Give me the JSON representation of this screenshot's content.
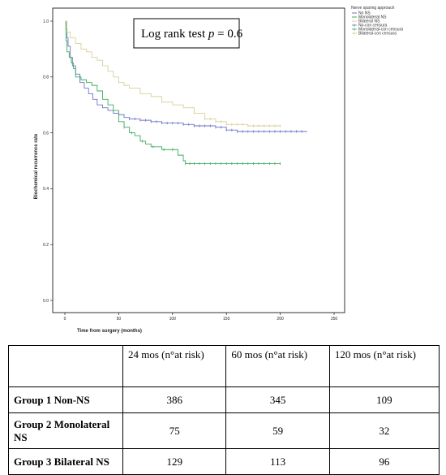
{
  "chart_data": {
    "type": "line",
    "title": "",
    "xlabel": "Time from surgery (months)",
    "ylabel": "Biochemical recurrence rate",
    "xlim": [
      0,
      250
    ],
    "ylim": [
      0.0,
      1.0
    ],
    "x_ticks": [
      0,
      50,
      100,
      150,
      200,
      250
    ],
    "y_ticks": [
      0.0,
      0.2,
      0.4,
      0.6,
      0.8,
      1.0
    ],
    "x_tick_labels": [
      "0",
      "50",
      "100",
      "150",
      "200",
      "250"
    ],
    "y_tick_labels": [
      "0.0",
      "0.2",
      "0.4",
      "0.6",
      "0.8",
      "1.0"
    ],
    "annotation": {
      "prefix": "Log rank test ",
      "italic": "p",
      "suffix": " = 0.6"
    },
    "legend_title": "Nerve sparing approach",
    "legend_placement": "top-right",
    "legend": [
      {
        "label": "No NS",
        "color": "#6a76c8",
        "kind": "line"
      },
      {
        "label": "Monolateral NS",
        "color": "#3cac5c",
        "kind": "line"
      },
      {
        "label": "Bilateral NS",
        "color": "#d9cf9a",
        "kind": "line"
      },
      {
        "label": "No-con censura",
        "color": "#6a76c8",
        "kind": "cross"
      },
      {
        "label": "Monolateral-con censura",
        "color": "#3cac5c",
        "kind": "cross"
      },
      {
        "label": "Bilateral-con censura",
        "color": "#d9cf9a",
        "kind": "cross"
      }
    ],
    "series": [
      {
        "name": "No NS",
        "color": "#6a76c8",
        "x": [
          0,
          1,
          2,
          3,
          5,
          7,
          10,
          14,
          18,
          22,
          26,
          30,
          35,
          40,
          45,
          50,
          55,
          60,
          70,
          80,
          90,
          100,
          110,
          120,
          130,
          140,
          150,
          160,
          170,
          180,
          190,
          200,
          210,
          220,
          225
        ],
        "y": [
          1.0,
          0.97,
          0.94,
          0.91,
          0.87,
          0.84,
          0.81,
          0.78,
          0.76,
          0.74,
          0.72,
          0.7,
          0.69,
          0.68,
          0.67,
          0.665,
          0.655,
          0.65,
          0.645,
          0.64,
          0.635,
          0.635,
          0.63,
          0.625,
          0.625,
          0.62,
          0.61,
          0.605,
          0.605,
          0.605,
          0.605,
          0.605,
          0.605,
          0.605,
          0.605
        ],
        "censor_x": [
          60,
          65,
          70,
          75,
          80,
          85,
          90,
          95,
          100,
          105,
          110,
          115,
          120,
          125,
          130,
          135,
          140,
          145,
          150,
          155,
          160,
          165,
          170,
          175,
          180,
          185,
          190,
          195,
          200,
          205,
          210,
          215,
          220
        ]
      },
      {
        "name": "Monolateral NS",
        "color": "#3cac5c",
        "x": [
          0,
          1,
          2,
          4,
          6,
          8,
          10,
          15,
          20,
          25,
          30,
          35,
          40,
          45,
          50,
          55,
          60,
          65,
          70,
          75,
          80,
          85,
          90,
          100,
          105,
          110,
          112,
          120,
          150,
          180,
          200
        ],
        "y": [
          1.0,
          0.93,
          0.89,
          0.87,
          0.85,
          0.83,
          0.8,
          0.79,
          0.78,
          0.77,
          0.75,
          0.72,
          0.7,
          0.68,
          0.64,
          0.62,
          0.6,
          0.59,
          0.57,
          0.56,
          0.55,
          0.55,
          0.54,
          0.54,
          0.52,
          0.5,
          0.49,
          0.49,
          0.49,
          0.49,
          0.49
        ],
        "censor_x": [
          55,
          62,
          72,
          82,
          92,
          100,
          112,
          116,
          120,
          125,
          130,
          135,
          140,
          145,
          150,
          155,
          160,
          165,
          170,
          175,
          180,
          185,
          190,
          195,
          200
        ]
      },
      {
        "name": "Bilateral NS",
        "color": "#d9cf9a",
        "x": [
          0,
          2,
          5,
          10,
          15,
          20,
          25,
          30,
          35,
          40,
          45,
          50,
          55,
          60,
          70,
          80,
          90,
          100,
          110,
          120,
          130,
          140,
          150,
          160,
          170,
          180,
          190,
          200
        ],
        "y": [
          1.0,
          0.96,
          0.94,
          0.92,
          0.9,
          0.89,
          0.87,
          0.86,
          0.84,
          0.82,
          0.8,
          0.78,
          0.77,
          0.76,
          0.74,
          0.73,
          0.71,
          0.7,
          0.69,
          0.67,
          0.65,
          0.64,
          0.63,
          0.63,
          0.625,
          0.625,
          0.625,
          0.625
        ],
        "censor_x": [
          130,
          135,
          140,
          145,
          150,
          155,
          160,
          165,
          170,
          175,
          180,
          185,
          190,
          195,
          200
        ]
      }
    ]
  },
  "table": {
    "headers": [
      "",
      "24 mos (n°at risk)",
      "60 mos (n°at risk)",
      "120 mos (n°at risk)"
    ],
    "rows": [
      {
        "label": "Group 1 Non-NS",
        "values": [
          "386",
          "345",
          "109"
        ]
      },
      {
        "label": "Group 2 Monolateral NS",
        "values": [
          "75",
          "59",
          "32"
        ]
      },
      {
        "label": "Group 3 Bilateral NS",
        "values": [
          "129",
          "113",
          "96"
        ]
      }
    ]
  }
}
